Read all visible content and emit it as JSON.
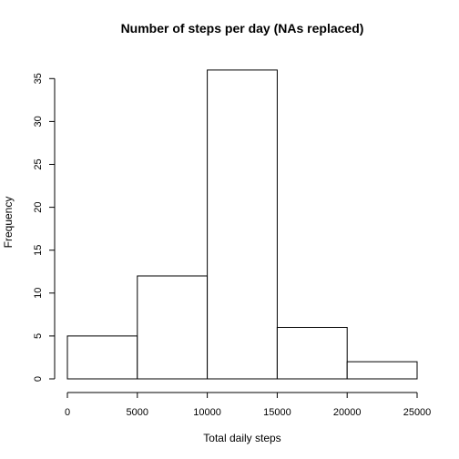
{
  "chart_data": {
    "type": "bar",
    "title": "Number of steps per day (NAs replaced)",
    "xlabel": "Total daily steps",
    "ylabel": "Frequency",
    "bins": [
      {
        "from": 0,
        "to": 5000,
        "count": 5
      },
      {
        "from": 5000,
        "to": 10000,
        "count": 12
      },
      {
        "from": 10000,
        "to": 15000,
        "count": 36
      },
      {
        "from": 15000,
        "to": 20000,
        "count": 6
      },
      {
        "from": 20000,
        "to": 25000,
        "count": 2
      }
    ],
    "xlim": [
      0,
      25000
    ],
    "ylim": [
      0,
      36
    ],
    "x_ticks": [
      "0",
      "5000",
      "10000",
      "15000",
      "20000",
      "25000"
    ],
    "y_ticks": [
      "0",
      "5",
      "10",
      "15",
      "20",
      "25",
      "30",
      "35"
    ],
    "colors": {
      "bar_fill": "#ffffff",
      "bar_stroke": "#000000"
    },
    "grid": false,
    "legend": "none"
  }
}
